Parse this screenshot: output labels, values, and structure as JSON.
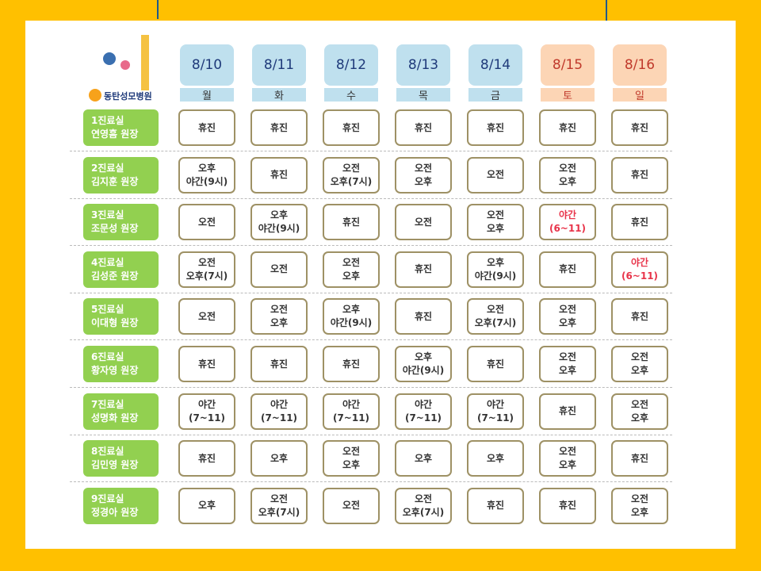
{
  "header": {
    "hospital": "동탄성모병원"
  },
  "days": [
    {
      "date": "8/10",
      "weekday": "월"
    },
    {
      "date": "8/11",
      "weekday": "화"
    },
    {
      "date": "8/12",
      "weekday": "수"
    },
    {
      "date": "8/13",
      "weekday": "목"
    },
    {
      "date": "8/14",
      "weekday": "금"
    },
    {
      "date": "8/15",
      "weekday": "토",
      "weekend": true
    },
    {
      "date": "8/16",
      "weekday": "일",
      "weekend": true
    }
  ],
  "rows": [
    {
      "room": "1진료실",
      "doctor": "연영흠 원장",
      "cells": [
        {
          "lines": [
            "휴진"
          ]
        },
        {
          "lines": [
            "휴진"
          ]
        },
        {
          "lines": [
            "휴진"
          ]
        },
        {
          "lines": [
            "휴진"
          ]
        },
        {
          "lines": [
            "휴진"
          ]
        },
        {
          "lines": [
            "휴진"
          ]
        },
        {
          "lines": [
            "휴진"
          ]
        }
      ]
    },
    {
      "room": "2진료실",
      "doctor": "김지훈 원장",
      "cells": [
        {
          "lines": [
            "오후",
            "야간(9시)"
          ]
        },
        {
          "lines": [
            "휴진"
          ]
        },
        {
          "lines": [
            "오전",
            "오후(7시)"
          ]
        },
        {
          "lines": [
            "오전",
            "오후"
          ]
        },
        {
          "lines": [
            "오전"
          ]
        },
        {
          "lines": [
            "오전",
            "오후"
          ]
        },
        {
          "lines": [
            "휴진"
          ]
        }
      ]
    },
    {
      "room": "3진료실",
      "doctor": "조문성 원장",
      "cells": [
        {
          "lines": [
            "오전"
          ]
        },
        {
          "lines": [
            "오후",
            "야간(9시)"
          ]
        },
        {
          "lines": [
            "휴진"
          ]
        },
        {
          "lines": [
            "오전"
          ]
        },
        {
          "lines": [
            "오전",
            "오후"
          ]
        },
        {
          "lines": [
            "야간",
            "(6~11)"
          ],
          "color": "#e8344a"
        },
        {
          "lines": [
            "휴진"
          ]
        }
      ]
    },
    {
      "room": "4진료실",
      "doctor": "김성준 원장",
      "cells": [
        {
          "lines": [
            "오전",
            "오후(7시)"
          ]
        },
        {
          "lines": [
            "오전"
          ]
        },
        {
          "lines": [
            "오전",
            "오후"
          ]
        },
        {
          "lines": [
            "휴진"
          ]
        },
        {
          "lines": [
            "오후",
            "야간(9시)"
          ]
        },
        {
          "lines": [
            "휴진"
          ]
        },
        {
          "lines": [
            "야간",
            "(6~11)"
          ],
          "color": "#e8344a"
        }
      ]
    },
    {
      "room": "5진료실",
      "doctor": "이대형 원장",
      "cells": [
        {
          "lines": [
            "오전"
          ]
        },
        {
          "lines": [
            "오전",
            "오후"
          ]
        },
        {
          "lines": [
            "오후",
            "야간(9시)"
          ]
        },
        {
          "lines": [
            "휴진"
          ]
        },
        {
          "lines": [
            "오전",
            "오후(7시)"
          ]
        },
        {
          "lines": [
            "오전",
            "오후"
          ]
        },
        {
          "lines": [
            "휴진"
          ]
        }
      ]
    },
    {
      "room": "6진료실",
      "doctor": "황자영 원장",
      "cells": [
        {
          "lines": [
            "휴진"
          ]
        },
        {
          "lines": [
            "휴진"
          ]
        },
        {
          "lines": [
            "휴진"
          ]
        },
        {
          "lines": [
            "오후",
            "야간(9시)"
          ]
        },
        {
          "lines": [
            "휴진"
          ]
        },
        {
          "lines": [
            "오전",
            "오후"
          ]
        },
        {
          "lines": [
            "오전",
            "오후"
          ]
        }
      ]
    },
    {
      "room": "7진료실",
      "doctor": "성명화 원장",
      "cells": [
        {
          "lines": [
            "야간",
            "(7~11)"
          ]
        },
        {
          "lines": [
            "야간",
            "(7~11)"
          ]
        },
        {
          "lines": [
            "야간",
            "(7~11)"
          ]
        },
        {
          "lines": [
            "야간",
            "(7~11)"
          ]
        },
        {
          "lines": [
            "야간",
            "(7~11)"
          ]
        },
        {
          "lines": [
            "휴진"
          ]
        },
        {
          "lines": [
            "오전",
            "오후"
          ]
        }
      ]
    },
    {
      "room": "8진료실",
      "doctor": "김민영 원장",
      "cells": [
        {
          "lines": [
            "휴진"
          ]
        },
        {
          "lines": [
            "오후"
          ]
        },
        {
          "lines": [
            "오전",
            "오후"
          ]
        },
        {
          "lines": [
            "오후"
          ]
        },
        {
          "lines": [
            "오후"
          ]
        },
        {
          "lines": [
            "오전",
            "오후"
          ]
        },
        {
          "lines": [
            "휴진"
          ]
        }
      ]
    },
    {
      "room": "9진료실",
      "doctor": "정경아 원장",
      "cells": [
        {
          "lines": [
            "오후"
          ]
        },
        {
          "lines": [
            "오전",
            "오후(7시)"
          ]
        },
        {
          "lines": [
            "오전"
          ]
        },
        {
          "lines": [
            "오전",
            "오후(7시)"
          ]
        },
        {
          "lines": [
            "휴진"
          ]
        },
        {
          "lines": [
            "휴진"
          ]
        },
        {
          "lines": [
            "오전",
            "오후"
          ]
        }
      ]
    }
  ]
}
